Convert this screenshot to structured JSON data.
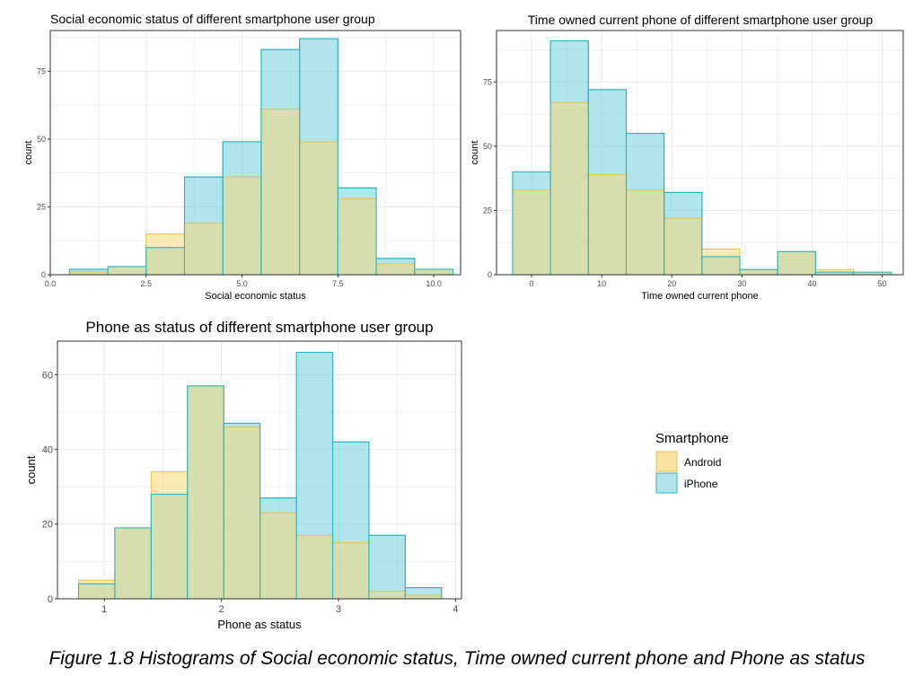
{
  "figure_caption": "Figure 1.8 Histograms of Social economic status, Time owned current phone and Phone as status",
  "colors": {
    "android_fill": "#f5d87a",
    "android_stroke": "#e8c14a",
    "iphone_fill": "#7dd3df",
    "iphone_stroke": "#2bb5c4",
    "panel_border": "#333333",
    "grid": "#ebebeb"
  },
  "legend": {
    "title": "Smartphone",
    "items": [
      {
        "label": "Android",
        "color": "#f5d87a",
        "stroke": "#e8c14a"
      },
      {
        "label": "iPhone",
        "color": "#7dd3df",
        "stroke": "#2bb5c4"
      }
    ]
  },
  "chart_data": [
    {
      "type": "bar",
      "subtype": "histogram-overlay",
      "title": "Social economic status of different smartphone user group",
      "xlabel": "Social economic status",
      "ylabel": "count",
      "xlim": [
        0,
        10.7
      ],
      "ylim": [
        0,
        90
      ],
      "xticks": [
        0.0,
        2.5,
        5.0,
        7.5,
        10.0
      ],
      "xtick_labels": [
        "0.0",
        "2.5",
        "5.0",
        "7.5",
        "10.0"
      ],
      "yticks": [
        0,
        25,
        50,
        75
      ],
      "yminor": [
        12.5,
        37.5,
        62.5,
        87.5
      ],
      "xminor": [
        1.25,
        3.75,
        6.25,
        8.75
      ],
      "grid": true,
      "bins": [
        [
          0.5,
          1.5
        ],
        [
          1.5,
          2.5
        ],
        [
          2.5,
          3.5
        ],
        [
          3.5,
          4.5
        ],
        [
          4.5,
          5.5
        ],
        [
          5.5,
          6.5
        ],
        [
          6.5,
          7.5
        ],
        [
          7.5,
          8.5
        ],
        [
          8.5,
          9.5
        ],
        [
          9.5,
          10.5
        ]
      ],
      "series": [
        {
          "name": "iPhone",
          "values": [
            2,
            3,
            10,
            36,
            49,
            83,
            87,
            32,
            6,
            2
          ]
        },
        {
          "name": "Android",
          "values": [
            1,
            3,
            15,
            19,
            36,
            61,
            49,
            28,
            4,
            2
          ]
        }
      ]
    },
    {
      "type": "bar",
      "subtype": "histogram-overlay",
      "title": "Time owned current phone of different smartphone user group",
      "xlabel": "Time owned current phone",
      "ylabel": "count",
      "xlim": [
        -5,
        53
      ],
      "ylim": [
        0,
        95
      ],
      "xticks": [
        0,
        10,
        20,
        30,
        40,
        50
      ],
      "xtick_labels": [
        "0",
        "10",
        "20",
        "30",
        "40",
        "50"
      ],
      "yticks": [
        0,
        25,
        50,
        75
      ],
      "yminor": [
        12.5,
        37.5,
        62.5,
        87.5
      ],
      "xminor": [
        5,
        15,
        25,
        35,
        45
      ],
      "grid": true,
      "bins": [
        [
          -2.7,
          2.7
        ],
        [
          2.7,
          8.1
        ],
        [
          8.1,
          13.5
        ],
        [
          13.5,
          18.9
        ],
        [
          18.9,
          24.3
        ],
        [
          24.3,
          29.7
        ],
        [
          29.7,
          35.1
        ],
        [
          35.1,
          40.5
        ],
        [
          40.5,
          45.9
        ],
        [
          45.9,
          51.3
        ]
      ],
      "series": [
        {
          "name": "iPhone",
          "values": [
            40,
            91,
            72,
            55,
            32,
            7,
            2,
            9,
            1,
            1
          ]
        },
        {
          "name": "Android",
          "values": [
            33,
            67,
            39,
            33,
            22,
            10,
            2,
            9,
            2,
            1
          ]
        }
      ]
    },
    {
      "type": "bar",
      "subtype": "histogram-overlay",
      "title": "Phone as status of different smartphone user group",
      "xlabel": "Phone as status",
      "ylabel": "count",
      "xlim": [
        0.6,
        4.05
      ],
      "ylim": [
        0,
        69
      ],
      "xticks": [
        1,
        2,
        3,
        4
      ],
      "xtick_labels": [
        "1",
        "2",
        "3",
        "4"
      ],
      "yticks": [
        0,
        20,
        40,
        60
      ],
      "yminor": [
        10,
        30,
        50
      ],
      "xminor": [
        1.5,
        2.5,
        3.5
      ],
      "grid": true,
      "bins": [
        [
          0.78,
          1.09
        ],
        [
          1.09,
          1.4
        ],
        [
          1.4,
          1.71
        ],
        [
          1.71,
          2.02
        ],
        [
          2.02,
          2.33
        ],
        [
          2.33,
          2.64
        ],
        [
          2.64,
          2.95
        ],
        [
          2.95,
          3.26
        ],
        [
          3.26,
          3.57
        ],
        [
          3.57,
          3.88
        ]
      ],
      "series": [
        {
          "name": "iPhone",
          "values": [
            4,
            19,
            28,
            57,
            47,
            27,
            66,
            42,
            17,
            3
          ]
        },
        {
          "name": "Android",
          "values": [
            5,
            19,
            34,
            57,
            46,
            23,
            17,
            15,
            2,
            1
          ]
        }
      ]
    }
  ]
}
